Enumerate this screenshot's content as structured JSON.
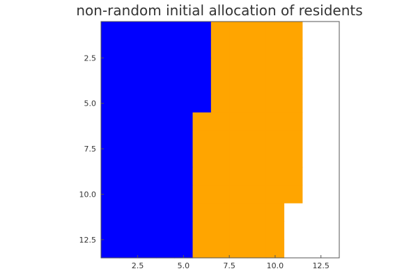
{
  "chart_data": {
    "type": "heatmap",
    "title": "non-random initial allocation of residents",
    "xlabel": "",
    "ylabel": "",
    "xlim": [
      0.5,
      13.5
    ],
    "ylim": [
      0.5,
      13.5
    ],
    "y_inverted": true,
    "grid": false,
    "legend": "none",
    "x_ticks": [
      2.5,
      5.0,
      7.5,
      10.0,
      12.5
    ],
    "x_tick_labels": [
      "2.5",
      "5.0",
      "7.5",
      "10.0",
      "12.5"
    ],
    "y_ticks": [
      2.5,
      5.0,
      7.5,
      10.0,
      12.5
    ],
    "y_tick_labels": [
      "2.5",
      "5.0",
      "7.5",
      "10.0",
      "12.5"
    ],
    "colors": {
      "blue": "#0000ff",
      "orange": "#ffa500",
      "empty": "#ffffff"
    },
    "cell_legend": {
      "1": "blue",
      "2": "orange",
      "0": "empty"
    },
    "grid_values": [
      [
        1,
        1,
        1,
        1,
        1,
        1,
        2,
        2,
        2,
        2,
        2,
        0,
        0
      ],
      [
        1,
        1,
        1,
        1,
        1,
        1,
        2,
        2,
        2,
        2,
        2,
        0,
        0
      ],
      [
        1,
        1,
        1,
        1,
        1,
        1,
        2,
        2,
        2,
        2,
        2,
        0,
        0
      ],
      [
        1,
        1,
        1,
        1,
        1,
        1,
        2,
        2,
        2,
        2,
        2,
        0,
        0
      ],
      [
        1,
        1,
        1,
        1,
        1,
        1,
        2,
        2,
        2,
        2,
        2,
        0,
        0
      ],
      [
        1,
        1,
        1,
        1,
        1,
        2,
        2,
        2,
        2,
        2,
        2,
        0,
        0
      ],
      [
        1,
        1,
        1,
        1,
        1,
        2,
        2,
        2,
        2,
        2,
        2,
        0,
        0
      ],
      [
        1,
        1,
        1,
        1,
        1,
        2,
        2,
        2,
        2,
        2,
        2,
        0,
        0
      ],
      [
        1,
        1,
        1,
        1,
        1,
        2,
        2,
        2,
        2,
        2,
        2,
        0,
        0
      ],
      [
        1,
        1,
        1,
        1,
        1,
        2,
        2,
        2,
        2,
        2,
        2,
        0,
        0
      ],
      [
        1,
        1,
        1,
        1,
        1,
        2,
        2,
        2,
        2,
        2,
        0,
        0,
        0
      ],
      [
        1,
        1,
        1,
        1,
        1,
        2,
        2,
        2,
        2,
        2,
        0,
        0,
        0
      ],
      [
        1,
        1,
        1,
        1,
        1,
        2,
        2,
        2,
        2,
        2,
        0,
        0,
        0
      ]
    ]
  }
}
